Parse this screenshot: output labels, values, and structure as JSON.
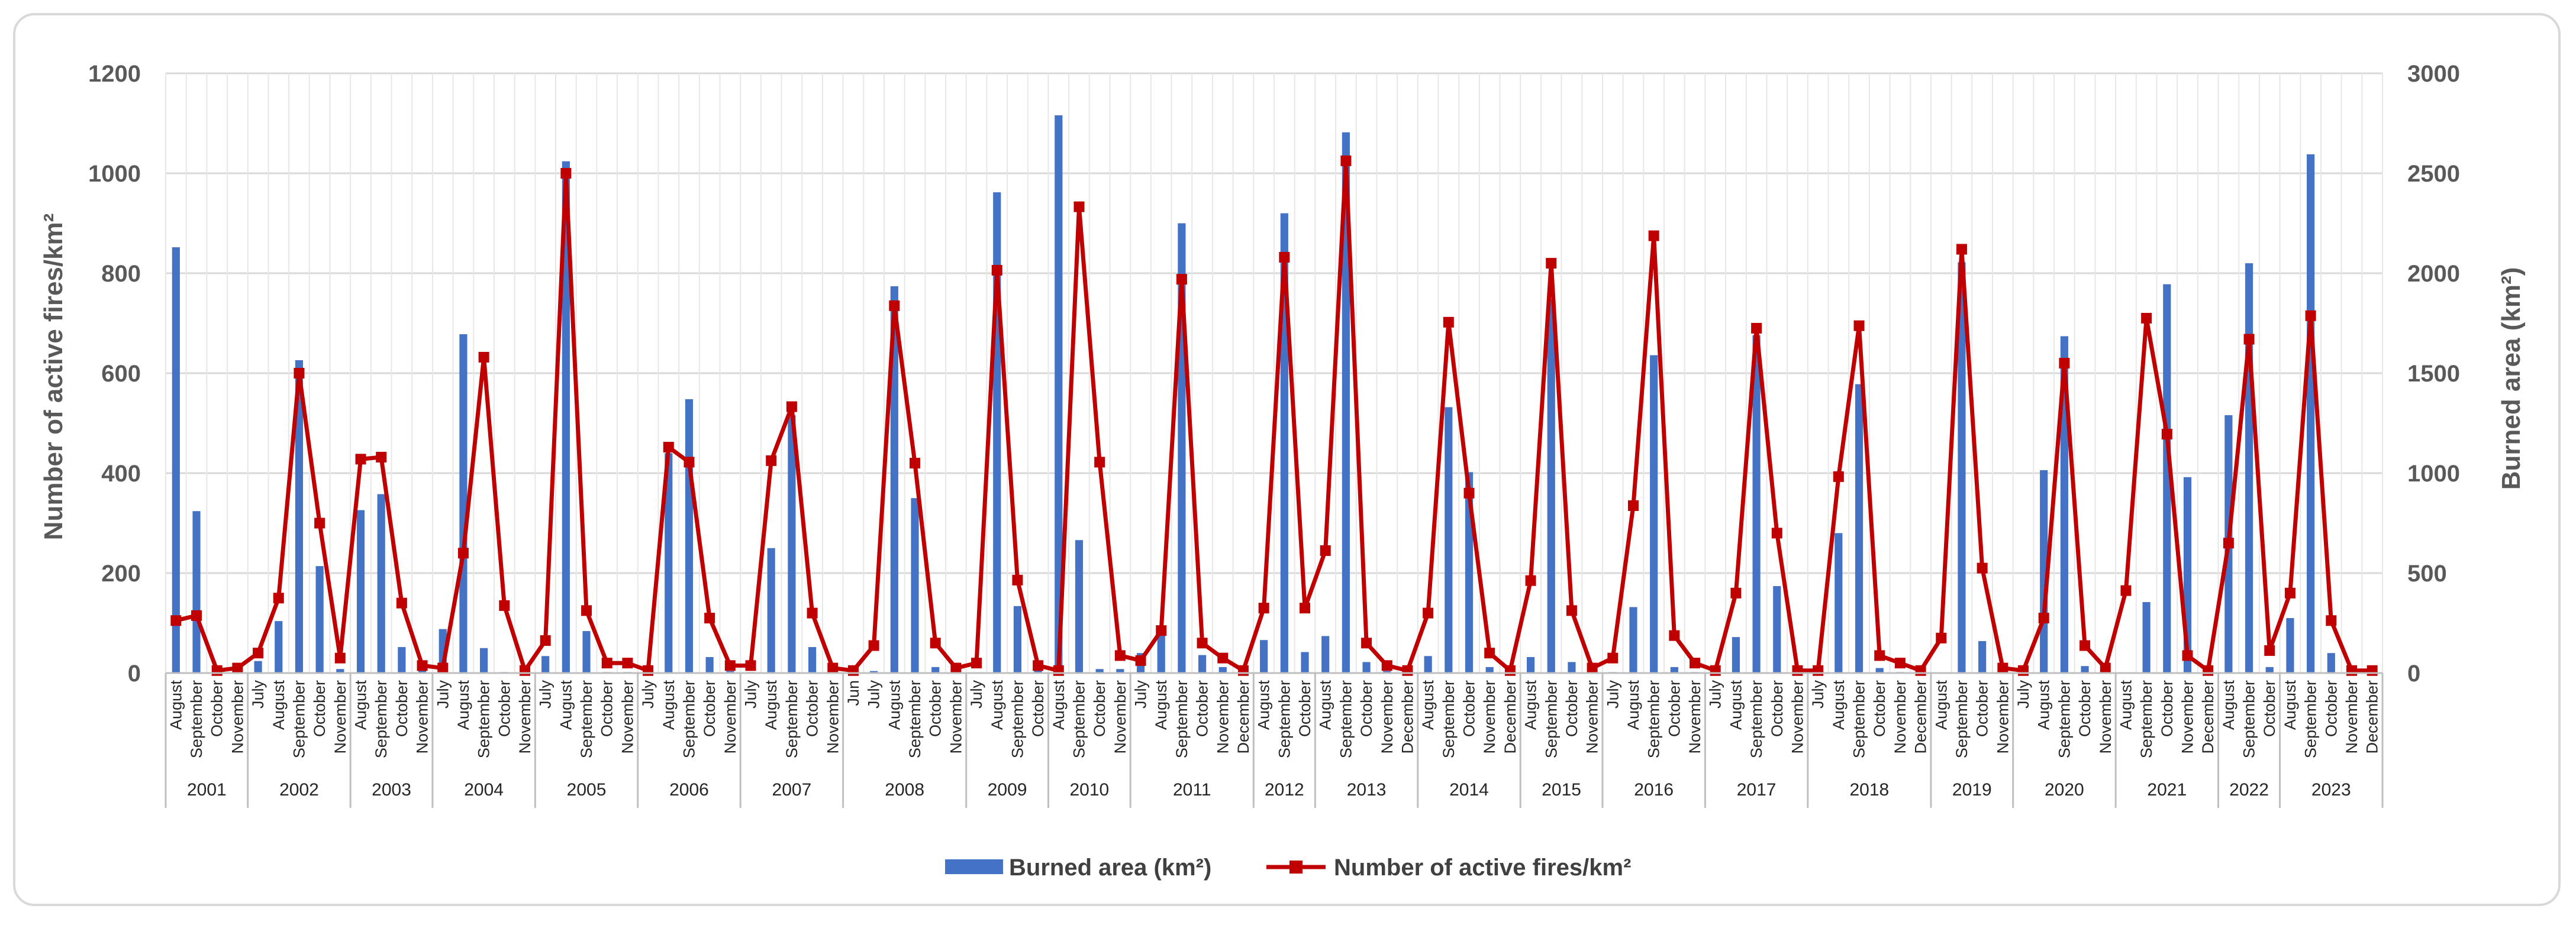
{
  "chart_data": {
    "type": "bar+line",
    "y_left": {
      "label": "Number of active fires/km²",
      "range": [
        0,
        1200
      ],
      "ticks": [
        0,
        200,
        400,
        600,
        800,
        1000,
        1200
      ]
    },
    "y_right": {
      "label": "Burned area (km²)",
      "range": [
        0,
        3000
      ],
      "ticks": [
        0,
        500,
        1000,
        1500,
        2000,
        2500,
        3000
      ]
    },
    "grid": true,
    "legend_position": "bottom",
    "years": [
      {
        "label": "2001",
        "n": 4
      },
      {
        "label": "2002",
        "n": 5
      },
      {
        "label": "2003",
        "n": 4
      },
      {
        "label": "2004",
        "n": 5
      },
      {
        "label": "2005",
        "n": 5
      },
      {
        "label": "2006",
        "n": 5
      },
      {
        "label": "2007",
        "n": 5
      },
      {
        "label": "2008",
        "n": 6
      },
      {
        "label": "2009",
        "n": 4
      },
      {
        "label": "2010",
        "n": 4
      },
      {
        "label": "2011",
        "n": 6
      },
      {
        "label": "2012",
        "n": 3
      },
      {
        "label": "2013",
        "n": 5
      },
      {
        "label": "2014",
        "n": 5
      },
      {
        "label": "2015",
        "n": 4
      },
      {
        "label": "2016",
        "n": 5
      },
      {
        "label": "2017",
        "n": 5
      },
      {
        "label": "2018",
        "n": 6
      },
      {
        "label": "2019",
        "n": 4
      },
      {
        "label": "2020",
        "n": 5
      },
      {
        "label": "2021",
        "n": 5
      },
      {
        "label": "2022",
        "n": 3
      },
      {
        "label": "2023",
        "n": 5
      }
    ],
    "categories": [
      "August",
      "September",
      "October",
      "November",
      "July",
      "August",
      "September",
      "October",
      "November",
      "August",
      "September",
      "October",
      "November",
      "July",
      "August",
      "September",
      "October",
      "November",
      "July",
      "August",
      "September",
      "October",
      "November",
      "July",
      "August",
      "September",
      "October",
      "November",
      "July",
      "August",
      "September",
      "October",
      "November",
      "Jun",
      "July",
      "August",
      "September",
      "October",
      "November",
      "July",
      "August",
      "September",
      "October",
      "August",
      "September",
      "October",
      "November",
      "July",
      "August",
      "September",
      "October",
      "November",
      "December",
      "August",
      "September",
      "October",
      "August",
      "September",
      "October",
      "November",
      "December",
      "August",
      "September",
      "October",
      "November",
      "December",
      "August",
      "September",
      "October",
      "November",
      "July",
      "August",
      "September",
      "October",
      "November",
      "July",
      "August",
      "September",
      "October",
      "November",
      "July",
      "August",
      "September",
      "October",
      "November",
      "December",
      "August",
      "September",
      "October",
      "November",
      "July",
      "August",
      "September",
      "October",
      "November",
      "August",
      "September",
      "October",
      "November",
      "December",
      "August",
      "September",
      "October",
      "August",
      "September",
      "October",
      "November",
      "December"
    ],
    "series": [
      {
        "name": "Burned area (km²)",
        "type": "bar",
        "axis": "right",
        "color": "#4472c4",
        "values": [
          2130,
          810,
          5,
          0,
          60,
          260,
          1565,
          535,
          20,
          815,
          895,
          130,
          20,
          220,
          1695,
          125,
          5,
          0,
          85,
          2560,
          210,
          5,
          5,
          0,
          1100,
          1370,
          80,
          10,
          5,
          625,
          1290,
          130,
          0,
          0,
          10,
          1935,
          875,
          30,
          5,
          0,
          2405,
          335,
          20,
          2790,
          665,
          20,
          20,
          100,
          205,
          2250,
          90,
          30,
          5,
          165,
          2300,
          105,
          185,
          2705,
          55,
          10,
          5,
          85,
          1330,
          1005,
          30,
          10,
          80,
          1870,
          55,
          5,
          5,
          330,
          1590,
          30,
          5,
          5,
          180,
          1690,
          435,
          5,
          5,
          700,
          1445,
          25,
          5,
          5,
          0,
          2055,
          160,
          5,
          0,
          1015,
          1685,
          35,
          5,
          0,
          355,
          1945,
          980,
          5,
          1290,
          2050,
          30,
          275,
          2595,
          100,
          5,
          5
        ]
      },
      {
        "name": "Number of active fires/km²",
        "type": "line",
        "axis": "left",
        "color": "#c00000",
        "values": [
          105,
          115,
          5,
          10,
          40,
          150,
          600,
          300,
          30,
          428,
          432,
          140,
          15,
          10,
          240,
          632,
          135,
          5,
          65,
          1000,
          125,
          20,
          20,
          5,
          452,
          422,
          110,
          15,
          15,
          425,
          533,
          120,
          10,
          5,
          55,
          735,
          420,
          60,
          10,
          20,
          806,
          186,
          15,
          5,
          933,
          422,
          35,
          25,
          85,
          788,
          60,
          30,
          5,
          130,
          832,
          130,
          245,
          1025,
          60,
          15,
          5,
          120,
          702,
          360,
          40,
          5,
          185,
          820,
          125,
          10,
          30,
          335,
          875,
          75,
          20,
          5,
          160,
          690,
          280,
          5,
          5,
          393,
          695,
          35,
          20,
          5,
          70,
          848,
          210,
          10,
          5,
          110,
          620,
          55,
          10,
          165,
          710,
          478,
          35,
          5,
          260,
          668,
          45,
          160,
          715,
          105,
          5,
          5
        ]
      }
    ]
  }
}
